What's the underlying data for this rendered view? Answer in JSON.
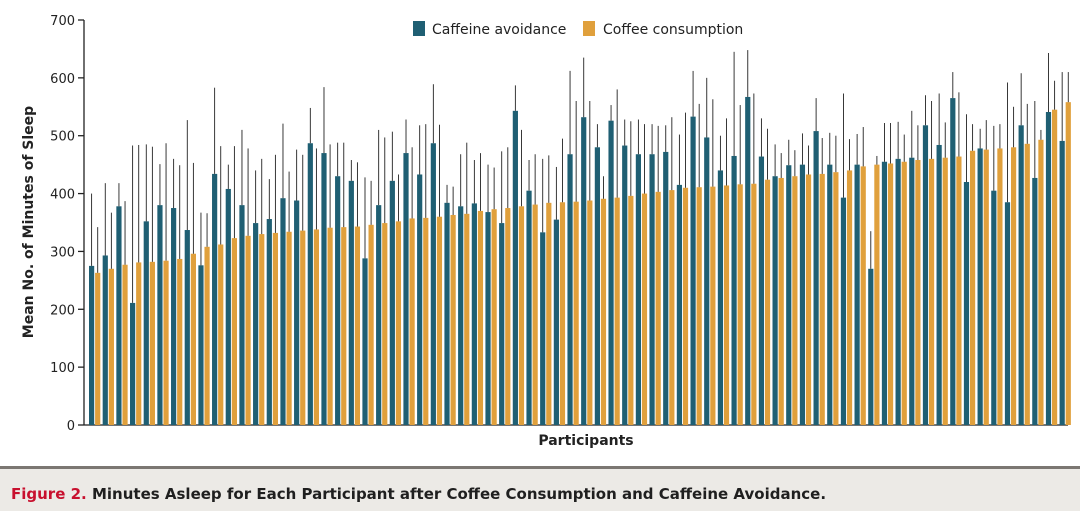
{
  "caption": {
    "label": "Figure 2.",
    "text": "Minutes Asleep for Each Participant after Coffee Consumption and Caffeine Avoidance."
  },
  "chart_data": {
    "type": "bar",
    "title": "",
    "xlabel": "Participants",
    "ylabel": "Mean No. of Minutes of Sleep",
    "ylim": [
      0,
      700
    ],
    "yticks": [
      0,
      100,
      200,
      300,
      400,
      500,
      600,
      700
    ],
    "grid": false,
    "legend_position": "top-center",
    "series": [
      {
        "name": "Caffeine avoidance",
        "color": "#1f5f73",
        "values": [
          275,
          293,
          378,
          211,
          352,
          380,
          375,
          337,
          276,
          434,
          408,
          380,
          349,
          356,
          392,
          388,
          487,
          470,
          430,
          422,
          288,
          380,
          422,
          470,
          433,
          487,
          384,
          378,
          383,
          368,
          349,
          543,
          405,
          333,
          355,
          468,
          532,
          480,
          526,
          483,
          468,
          468,
          472,
          415,
          533,
          497,
          440,
          465,
          567,
          464,
          430,
          449,
          450,
          508,
          450,
          393,
          450,
          270,
          455,
          460,
          462,
          518,
          484,
          565,
          420,
          478,
          405,
          385,
          518,
          427,
          541,
          491
        ],
        "upper": [
          400,
          418,
          418,
          483,
          485,
          451,
          460,
          527,
          367,
          583,
          450,
          510,
          440,
          425,
          521,
          476,
          548,
          584,
          488,
          458,
          428,
          510,
          507,
          528,
          518,
          589,
          415,
          468,
          458,
          450,
          473,
          587,
          458,
          460,
          446,
          612,
          635,
          520,
          553,
          528,
          528,
          520,
          518,
          502,
          612,
          600,
          500,
          645,
          648,
          530,
          485,
          493,
          504,
          565,
          505,
          573,
          503,
          335,
          522,
          524,
          543,
          570,
          573,
          610,
          537,
          512,
          517,
          592,
          608,
          560,
          643,
          610
        ],
        "mean_label": "Mean No. of Minutes of Sleep"
      },
      {
        "name": "Coffee consumption",
        "color": "#e0a03c",
        "values": [
          263,
          270,
          277,
          281,
          282,
          284,
          287,
          296,
          308,
          312,
          323,
          327,
          330,
          332,
          334,
          336,
          338,
          341,
          342,
          343,
          346,
          349,
          352,
          357,
          358,
          360,
          363,
          365,
          370,
          373,
          375,
          378,
          381,
          384,
          385,
          386,
          388,
          391,
          393,
          396,
          400,
          403,
          406,
          410,
          411,
          412,
          414,
          416,
          417,
          424,
          427,
          430,
          433,
          434,
          437,
          440,
          447,
          450,
          452,
          455,
          458,
          460,
          462,
          464,
          474,
          476,
          478,
          480,
          486,
          493,
          545,
          558
        ],
        "upper": [
          342,
          367,
          387,
          484,
          481,
          487,
          449,
          453,
          366,
          482,
          482,
          478,
          460,
          467,
          438,
          467,
          478,
          485,
          488,
          454,
          422,
          497,
          433,
          480,
          520,
          519,
          412,
          488,
          470,
          445,
          480,
          510,
          468,
          466,
          495,
          560,
          560,
          430,
          580,
          525,
          520,
          517,
          532,
          540,
          555,
          563,
          530,
          553,
          573,
          512,
          470,
          475,
          483,
          496,
          500,
          494,
          515,
          465,
          522,
          502,
          518,
          560,
          523,
          575,
          520,
          527,
          520,
          550,
          555,
          510,
          595,
          610
        ]
      }
    ]
  }
}
